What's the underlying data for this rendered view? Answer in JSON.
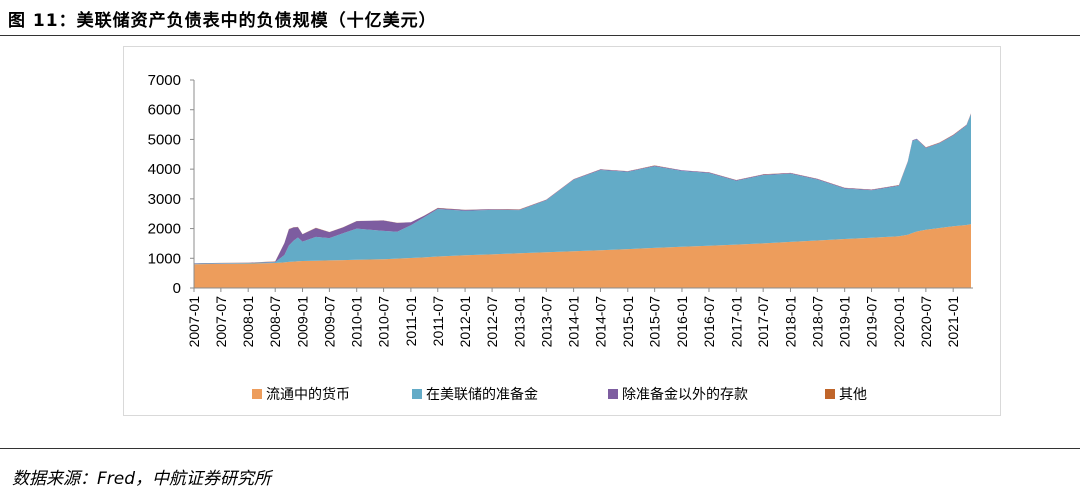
{
  "header": {
    "title": "图 11：美联储资产负债表中的负债规模（十亿美元）"
  },
  "footer": {
    "source": "数据来源：Fred，中航证券研究所"
  },
  "colors": {
    "currency": "#ed9d5c",
    "reserves": "#63abc7",
    "deposits": "#7d5da0",
    "other": "#c0652a"
  },
  "chart_data": {
    "type": "area",
    "stacked": true,
    "title": "",
    "xlabel": "",
    "ylabel": "",
    "ylim": [
      0,
      7000
    ],
    "yticks": [
      "0",
      "1000",
      "2000",
      "3000",
      "4000",
      "5000",
      "6000",
      "7000"
    ],
    "grid": false,
    "legend_position": "bottom",
    "x_tick_labels": [
      "2007-01",
      "2007-07",
      "2008-01",
      "2008-07",
      "2009-01",
      "2009-07",
      "2010-01",
      "2010-07",
      "2011-01",
      "2011-07",
      "2012-01",
      "2012-07",
      "2013-01",
      "2013-07",
      "2014-01",
      "2014-07",
      "2015-01",
      "2015-07",
      "2016-01",
      "2016-07",
      "2017-01",
      "2017-07",
      "2018-01",
      "2018-07",
      "2019-01",
      "2019-07",
      "2020-01",
      "2020-07",
      "2021-01"
    ],
    "x": [
      "2007-01",
      "2007-07",
      "2008-01",
      "2008-07",
      "2008-09",
      "2008-10",
      "2008-11",
      "2008-12",
      "2009-01",
      "2009-04",
      "2009-07",
      "2009-10",
      "2010-01",
      "2010-04",
      "2010-07",
      "2010-10",
      "2011-01",
      "2011-04",
      "2011-07",
      "2012-01",
      "2012-07",
      "2013-01",
      "2013-07",
      "2014-01",
      "2014-07",
      "2015-01",
      "2015-07",
      "2016-01",
      "2016-07",
      "2017-01",
      "2017-07",
      "2018-01",
      "2018-07",
      "2019-01",
      "2019-07",
      "2020-01",
      "2020-03",
      "2020-04",
      "2020-05",
      "2020-07",
      "2020-10",
      "2021-01",
      "2021-04",
      "2021-05"
    ],
    "series": [
      {
        "name": "流通中的货币",
        "color": "#ed9d5c",
        "values": [
          800,
          810,
          820,
          840,
          860,
          880,
          890,
          900,
          910,
          920,
          930,
          940,
          950,
          960,
          970,
          990,
          1010,
          1030,
          1060,
          1100,
          1130,
          1170,
          1200,
          1240,
          1270,
          1310,
          1350,
          1390,
          1420,
          1460,
          1500,
          1550,
          1600,
          1650,
          1690,
          1740,
          1790,
          1850,
          1900,
          1960,
          2020,
          2080,
          2120,
          2150
        ]
      },
      {
        "name": "在美联储的准备金",
        "color": "#63abc7",
        "values": [
          20,
          20,
          20,
          30,
          250,
          550,
          700,
          800,
          650,
          800,
          750,
          900,
          1050,
          1000,
          950,
          900,
          1100,
          1350,
          1600,
          1500,
          1500,
          1450,
          1750,
          2400,
          2700,
          2600,
          2750,
          2550,
          2450,
          2150,
          2300,
          2300,
          2050,
          1700,
          1600,
          1700,
          2450,
          3100,
          3100,
          2750,
          2850,
          3050,
          3350,
          3700
        ]
      },
      {
        "name": "除准备金以外的存款",
        "color": "#7d5da0",
        "values": [
          10,
          10,
          10,
          20,
          400,
          550,
          450,
          350,
          250,
          300,
          200,
          200,
          250,
          300,
          350,
          300,
          100,
          50,
          30,
          30,
          20,
          20,
          20,
          20,
          20,
          20,
          20,
          20,
          20,
          20,
          20,
          20,
          20,
          20,
          20,
          20,
          20,
          20,
          20,
          20,
          20,
          20,
          20,
          20
        ]
      },
      {
        "name": "其他",
        "color": "#c0652a",
        "values": [
          5,
          5,
          5,
          5,
          5,
          5,
          5,
          5,
          5,
          5,
          5,
          5,
          5,
          5,
          5,
          5,
          5,
          5,
          5,
          5,
          5,
          5,
          5,
          5,
          5,
          5,
          5,
          5,
          5,
          5,
          5,
          5,
          5,
          5,
          5,
          5,
          5,
          5,
          5,
          5,
          5,
          5,
          5,
          5
        ]
      }
    ]
  }
}
